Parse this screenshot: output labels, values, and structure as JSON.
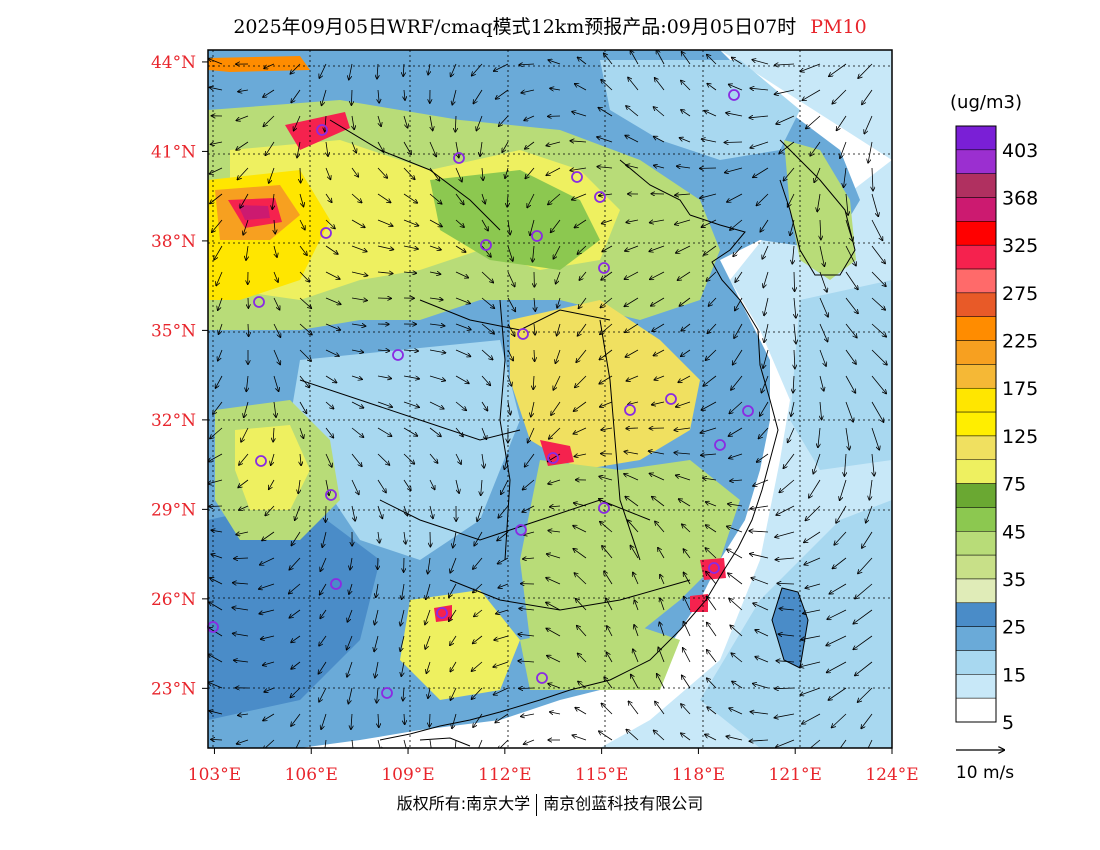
{
  "title": {
    "main": "2025年09月05日WRF/cmaq模式12km预报产品:09月05日07时",
    "variable": "PM10"
  },
  "map": {
    "lon_ticks": [
      "103°E",
      "106°E",
      "109°E",
      "112°E",
      "115°E",
      "118°E",
      "121°E",
      "124°E"
    ],
    "lat_ticks": [
      "44°N",
      "41°N",
      "38°N",
      "35°N",
      "32°N",
      "29°N",
      "26°N",
      "23°N"
    ],
    "lon_range": [
      102.8,
      124.0
    ],
    "lat_range": [
      21.0,
      44.4
    ]
  },
  "colorbar": {
    "unit": "(ug/m3)",
    "labels": [
      "403",
      "368",
      "325",
      "275",
      "225",
      "175",
      "125",
      "75",
      "45",
      "35",
      "25",
      "15",
      "5"
    ],
    "colors_top_to_bottom": [
      "#7a1fd6",
      "#9b2fd0",
      "#b03060",
      "#cc1a70",
      "#ff0000",
      "#f5224e",
      "#ff6a6a",
      "#e85a28",
      "#ff8c00",
      "#f7a020",
      "#f5b836",
      "#ffe600",
      "#ffee00",
      "#f0e060",
      "#eef060",
      "#6aa832",
      "#8cc850",
      "#b8dc78",
      "#c8e088",
      "#e0ecb8",
      "#4a8cc8",
      "#6aaad8",
      "#a8d8f0",
      "#c8e8f8",
      "#ffffff"
    ]
  },
  "wind_reference": {
    "label": "10 m/s"
  },
  "colors": {
    "axis_label": "#e8252c",
    "station_marker": "#8a2be2"
  },
  "copyright": {
    "left": "版权所有:南京大学",
    "right": "南京创蓝科技有限公司"
  }
}
